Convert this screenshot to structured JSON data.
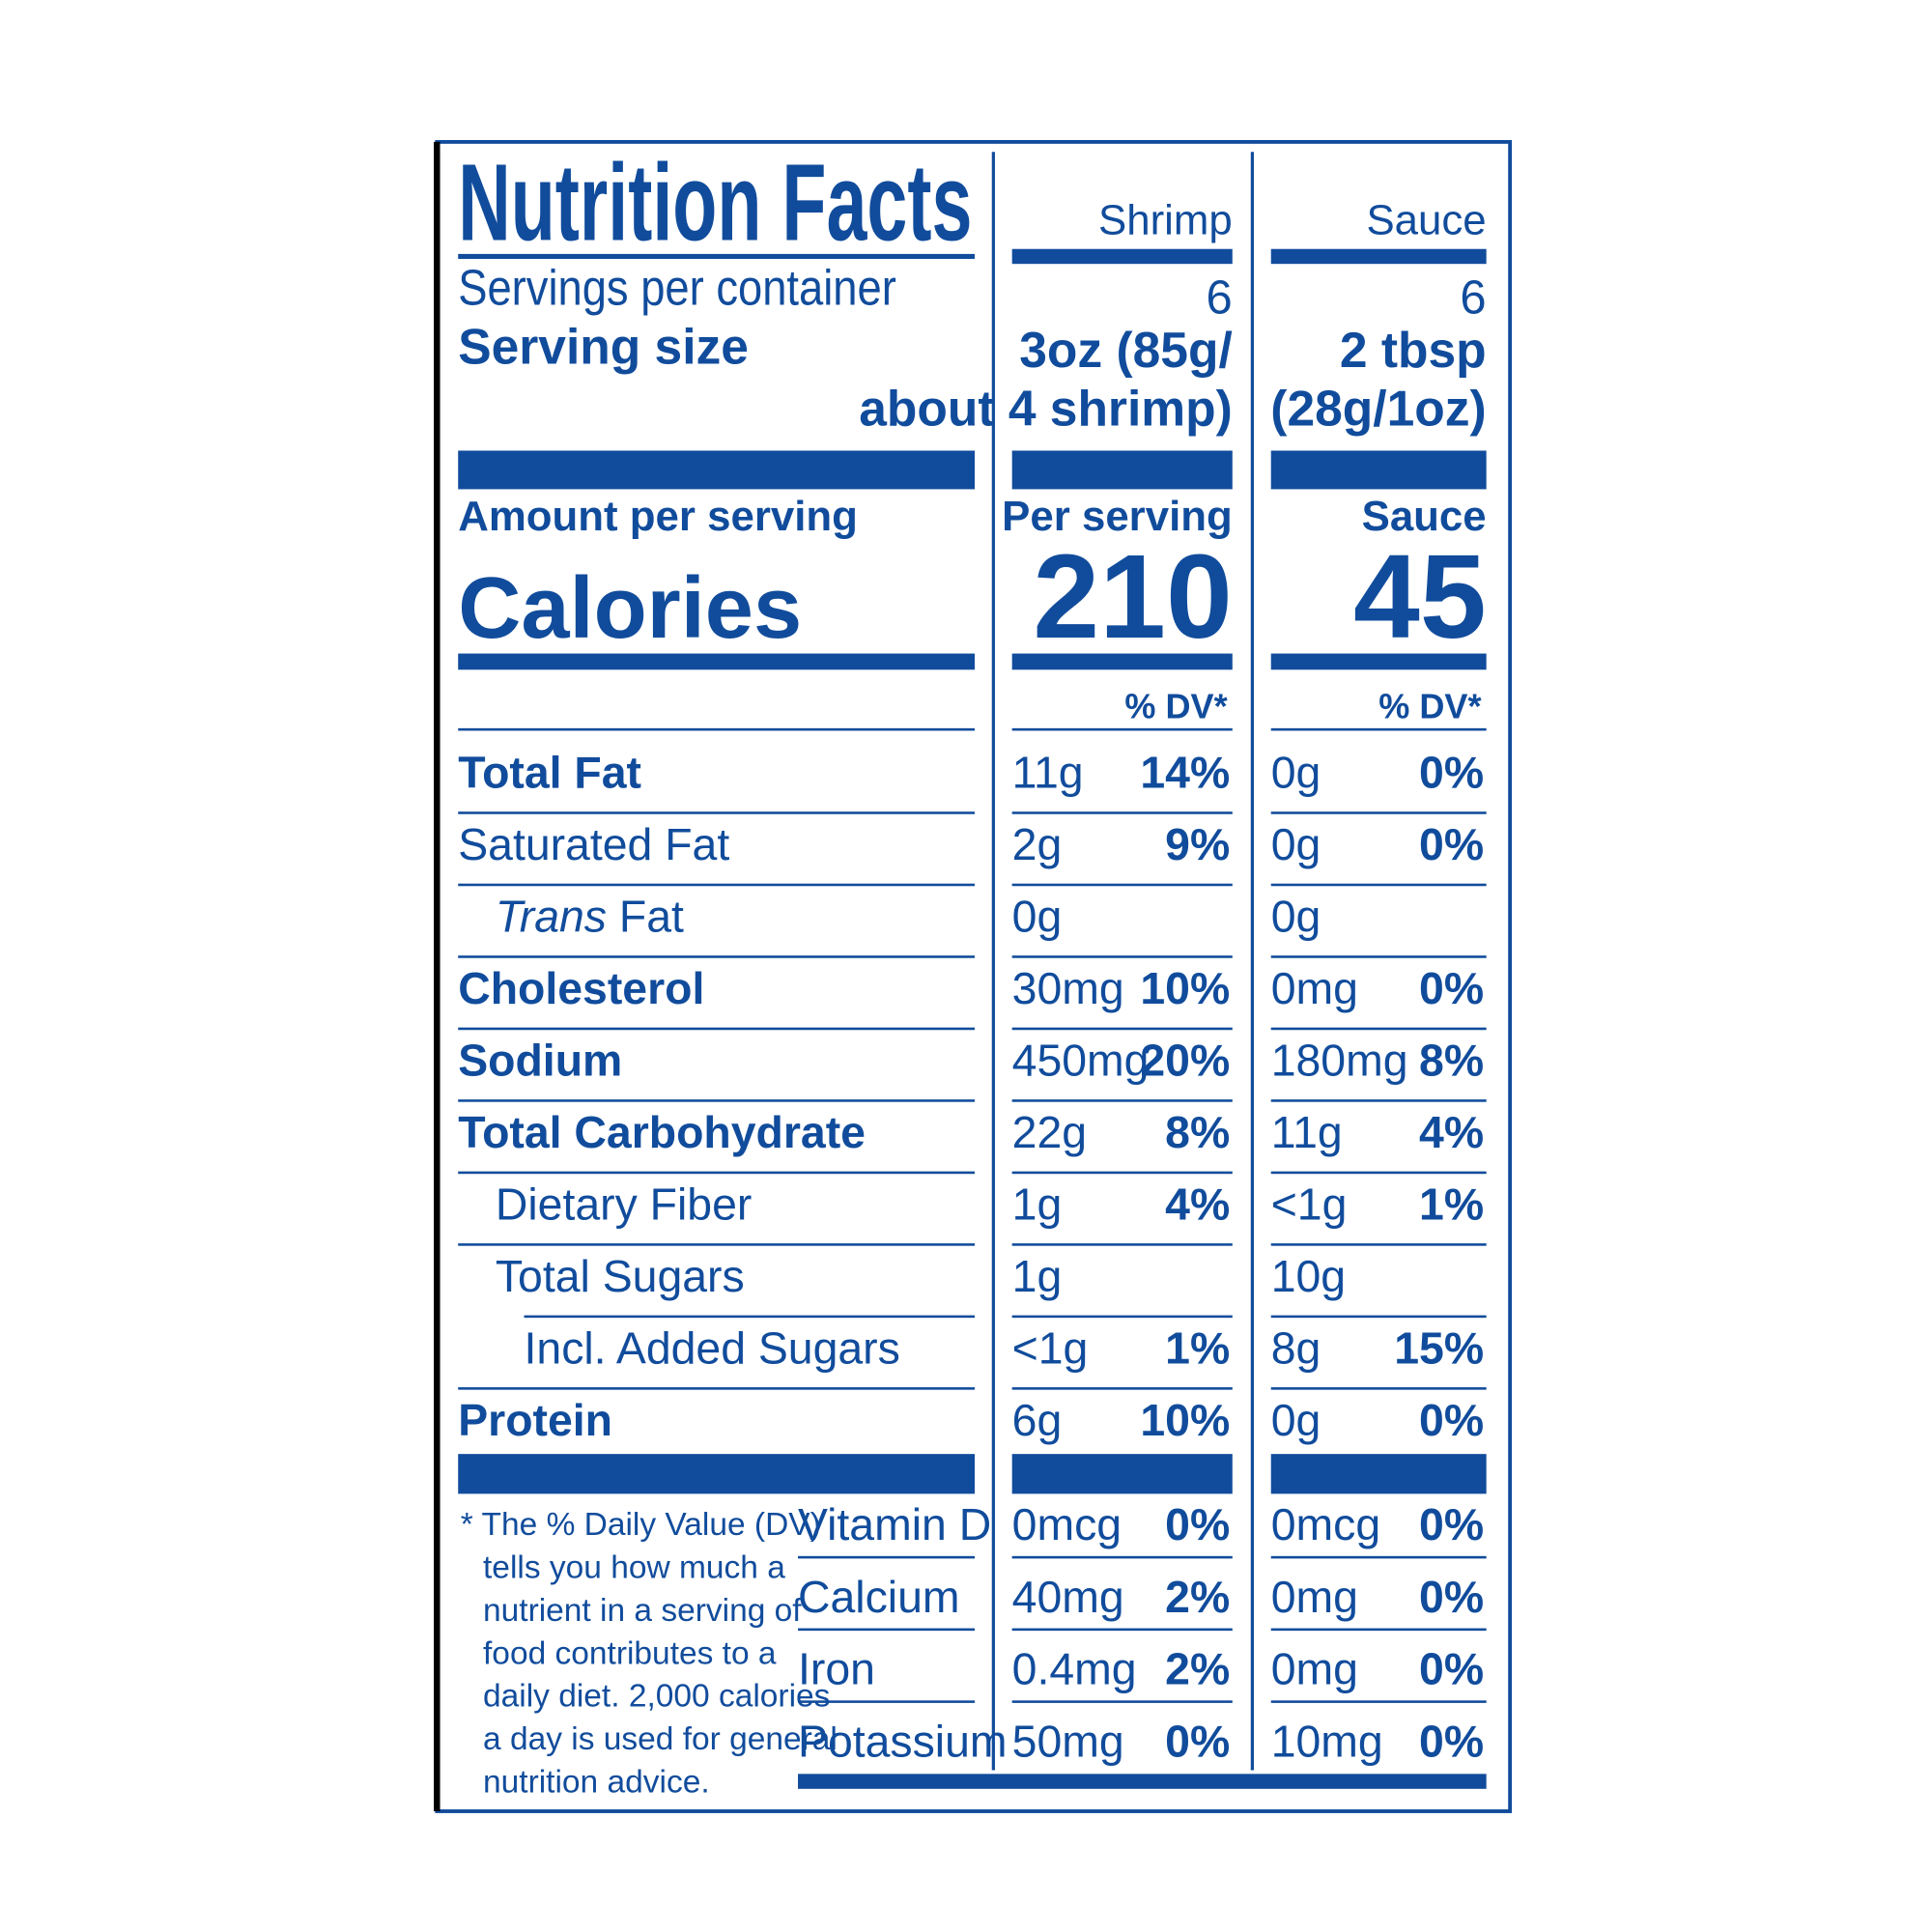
{
  "header": {
    "title": "Nutrition Facts",
    "columns": [
      "Shrimp",
      "Sauce"
    ]
  },
  "servings": {
    "label": "Servings per container",
    "values": [
      "6",
      "6"
    ]
  },
  "serving_size": {
    "label": "Serving size",
    "values": [
      [
        "3oz (85g/",
        "about 4 shrimp)"
      ],
      [
        "2 tbsp",
        "(28g/1oz)"
      ]
    ]
  },
  "amount": {
    "label": "Amount per serving",
    "columns": [
      "Per serving",
      "Sauce"
    ]
  },
  "calories": {
    "label": "Calories",
    "values": [
      "210",
      "45"
    ]
  },
  "dv_header": [
    "% DV*",
    "% DV*"
  ],
  "nutrients": [
    {
      "label": "Total Fat",
      "bold": true,
      "indent": 0,
      "values": [
        [
          "11g",
          "14%"
        ],
        [
          "0g",
          "0%"
        ]
      ]
    },
    {
      "label": "Saturated Fat",
      "bold": false,
      "indent": 0,
      "values": [
        [
          "2g",
          "9%"
        ],
        [
          "0g",
          "0%"
        ]
      ]
    },
    {
      "label_italic": "Trans",
      "label": " Fat",
      "bold": false,
      "indent": 1,
      "values": [
        [
          "0g",
          null
        ],
        [
          "0g",
          null
        ]
      ]
    },
    {
      "label": "Cholesterol",
      "bold": true,
      "indent": 0,
      "values": [
        [
          "30mg",
          "10%"
        ],
        [
          "0mg",
          "0%"
        ]
      ]
    },
    {
      "label": "Sodium",
      "bold": true,
      "indent": 0,
      "values": [
        [
          "450mg",
          "20%"
        ],
        [
          "180mg",
          "8%"
        ]
      ]
    },
    {
      "label": "Total Carbohydrate",
      "bold": true,
      "indent": 0,
      "values": [
        [
          "22g",
          "8%"
        ],
        [
          "11g",
          "4%"
        ]
      ]
    },
    {
      "label": "Dietary Fiber",
      "bold": false,
      "indent": 1,
      "values": [
        [
          "1g",
          "4%"
        ],
        [
          "<1g",
          "1%"
        ]
      ]
    },
    {
      "label": "Total Sugars",
      "bold": false,
      "indent": 1,
      "values": [
        [
          "1g",
          null
        ],
        [
          "10g",
          null
        ]
      ]
    },
    {
      "label": "Incl. Added Sugars",
      "bold": false,
      "indent": 2,
      "values": [
        [
          "<1g",
          "1%"
        ],
        [
          "8g",
          "15%"
        ]
      ]
    },
    {
      "label": "Protein",
      "bold": true,
      "indent": 0,
      "values": [
        [
          "6g",
          "10%"
        ],
        [
          "0g",
          "0%"
        ]
      ]
    }
  ],
  "vitamins": [
    {
      "label": "Vitamin D",
      "values": [
        [
          "0mcg",
          "0%"
        ],
        [
          "0mcg",
          "0%"
        ]
      ]
    },
    {
      "label": "Calcium",
      "values": [
        [
          "40mg",
          "2%"
        ],
        [
          "0mg",
          "0%"
        ]
      ]
    },
    {
      "label": "Iron",
      "values": [
        [
          "0.4mg",
          "2%"
        ],
        [
          "0mg",
          "0%"
        ]
      ]
    },
    {
      "label": "Potassium",
      "values": [
        [
          "50mg",
          "0%"
        ],
        [
          "10mg",
          "0%"
        ]
      ]
    }
  ],
  "footnote": [
    "* The % Daily Value (DV)",
    "tells you how much a",
    "nutrient in a serving of",
    "food contributes to a",
    "daily diet. 2,000 calories",
    "a day is used for general",
    "nutrition advice."
  ]
}
